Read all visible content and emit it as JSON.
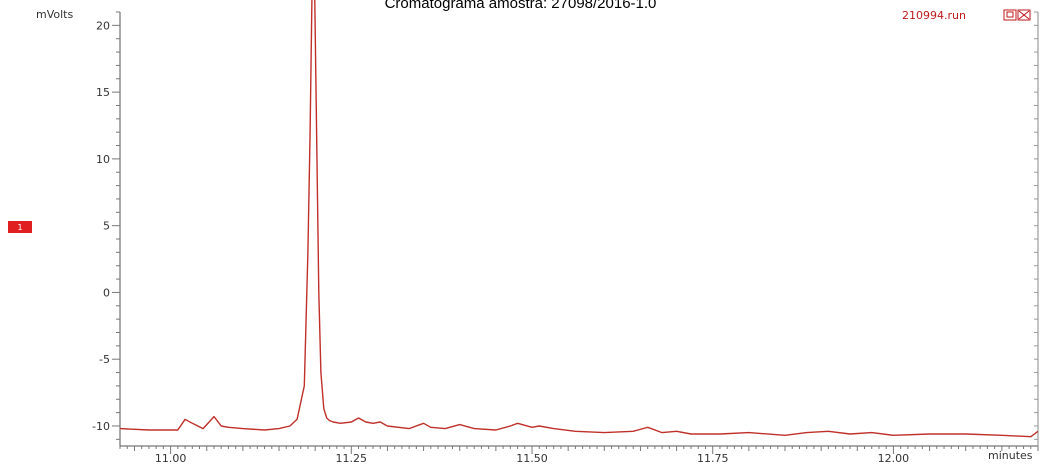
{
  "chart_data": {
    "type": "line",
    "title": "Cromatograma amostra: 27098/2016-1.0",
    "ylabel": "mVolts",
    "xlabel": "minutes",
    "run_name": "210994.run",
    "channel_marker": "1",
    "xlim": [
      10.93,
      12.2
    ],
    "ylim": [
      -11.5,
      21.0
    ],
    "x_ticks": [
      11.0,
      11.25,
      11.5,
      11.75,
      12.0
    ],
    "x_tick_labels": [
      "11.00",
      "11.25",
      "11.50",
      "11.75",
      "12.00"
    ],
    "y_ticks": [
      20,
      15,
      10,
      5,
      0,
      -5,
      -10
    ],
    "y_tick_labels": [
      "20",
      "15",
      "10",
      "5",
      "0",
      "-5",
      "-10"
    ],
    "grid": false,
    "series": [
      {
        "color": "#c0302a",
        "x": [
          10.93,
          10.97,
          11.0,
          11.01,
          11.02,
          11.03,
          11.045,
          11.06,
          11.07,
          11.08,
          11.1,
          11.13,
          11.15,
          11.165,
          11.175,
          11.185,
          11.19,
          11.193,
          11.196,
          11.199,
          11.202,
          11.205,
          11.208,
          11.212,
          11.216,
          11.22,
          11.225,
          11.235,
          11.25,
          11.26,
          11.27,
          11.28,
          11.29,
          11.3,
          11.33,
          11.35,
          11.36,
          11.38,
          11.4,
          11.42,
          11.45,
          11.47,
          11.48,
          11.5,
          11.51,
          11.53,
          11.56,
          11.6,
          11.64,
          11.66,
          11.68,
          11.7,
          11.72,
          11.76,
          11.8,
          11.85,
          11.88,
          11.91,
          11.94,
          11.97,
          12.0,
          12.05,
          12.1,
          12.15,
          12.19,
          12.2
        ],
        "y": [
          -10.2,
          -10.3,
          -10.3,
          -10.3,
          -9.5,
          -9.8,
          -10.2,
          -9.3,
          -10.0,
          -10.1,
          -10.2,
          -10.3,
          -10.2,
          -10.0,
          -9.5,
          -7.0,
          3.0,
          12.0,
          24.0,
          24.0,
          12.0,
          0.0,
          -6.0,
          -8.7,
          -9.4,
          -9.6,
          -9.7,
          -9.8,
          -9.7,
          -9.4,
          -9.7,
          -9.8,
          -9.7,
          -10.0,
          -10.2,
          -9.8,
          -10.1,
          -10.2,
          -9.9,
          -10.2,
          -10.3,
          -10.0,
          -9.8,
          -10.1,
          -10.0,
          -10.2,
          -10.4,
          -10.5,
          -10.4,
          -10.1,
          -10.5,
          -10.4,
          -10.6,
          -10.6,
          -10.5,
          -10.7,
          -10.5,
          -10.4,
          -10.6,
          -10.5,
          -10.7,
          -10.6,
          -10.6,
          -10.7,
          -10.8,
          -10.4
        ]
      }
    ]
  }
}
